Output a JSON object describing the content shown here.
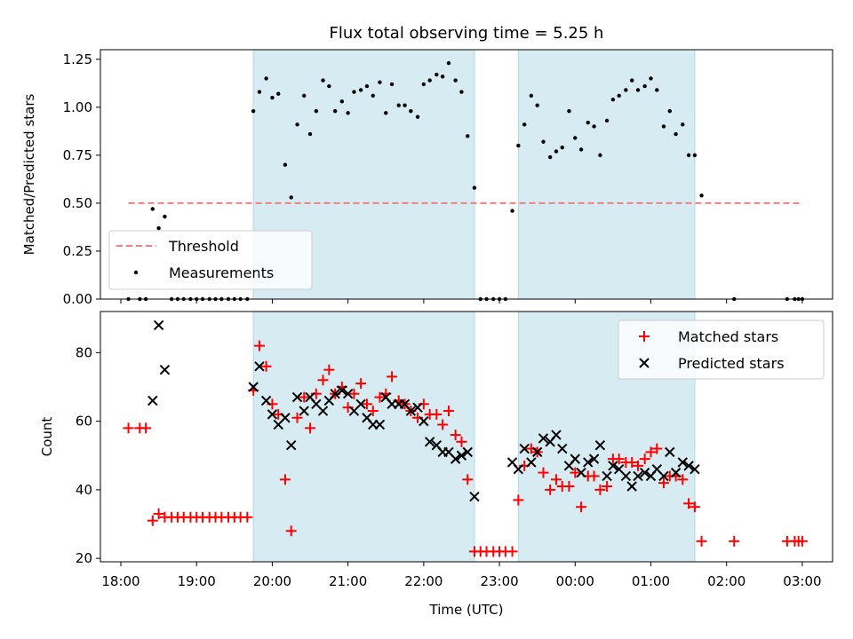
{
  "title": "Flux total observing time = 5.25 h",
  "chart_data": [
    {
      "type": "scatter",
      "ylabel": "Matched/Predicted stars",
      "xlabel": "",
      "xlim": [
        17.73,
        27.4
      ],
      "ylim": [
        0,
        1.3
      ],
      "yticks": [
        "0.00",
        "0.25",
        "0.50",
        "0.75",
        "1.00",
        "1.25"
      ],
      "grid": false,
      "legend_position": "lower-left",
      "shaded_intervals": [
        [
          19.75,
          22.67
        ],
        [
          23.25,
          25.58
        ]
      ],
      "threshold": {
        "name": "Threshold",
        "value": 0.5,
        "x_range": [
          18.1,
          27.0
        ],
        "color": "#f08080"
      },
      "series": [
        {
          "name": "Measurements",
          "color": "#000000",
          "x": [
            18.1,
            18.25,
            18.33,
            18.42,
            18.5,
            18.58,
            18.67,
            18.75,
            18.83,
            18.92,
            19.0,
            19.08,
            19.17,
            19.25,
            19.33,
            19.42,
            19.5,
            19.58,
            19.67,
            19.75,
            19.83,
            19.92,
            20.0,
            20.08,
            20.17,
            20.25,
            20.33,
            20.42,
            20.5,
            20.58,
            20.67,
            20.75,
            20.83,
            20.92,
            21.0,
            21.08,
            21.17,
            21.25,
            21.33,
            21.42,
            21.5,
            21.58,
            21.67,
            21.75,
            21.83,
            21.92,
            22.0,
            22.08,
            22.17,
            22.25,
            22.33,
            22.42,
            22.5,
            22.58,
            22.67,
            22.75,
            22.83,
            22.92,
            23.0,
            23.08,
            23.17,
            23.25,
            23.33,
            23.42,
            23.5,
            23.58,
            23.67,
            23.75,
            23.83,
            23.92,
            24.0,
            24.08,
            24.17,
            24.25,
            24.33,
            24.42,
            24.5,
            24.58,
            24.67,
            24.75,
            24.83,
            24.92,
            25.0,
            25.08,
            25.17,
            25.25,
            25.33,
            25.42,
            25.5,
            25.58,
            25.67,
            26.1,
            26.8,
            26.9,
            26.95,
            27.0
          ],
          "y": [
            0.0,
            0.0,
            0.0,
            0.47,
            0.37,
            0.43,
            0.0,
            0.0,
            0.0,
            0.0,
            0.0,
            0.0,
            0.0,
            0.0,
            0.0,
            0.0,
            0.0,
            0.0,
            0.0,
            0.98,
            1.08,
            1.15,
            1.05,
            1.07,
            0.7,
            0.53,
            0.91,
            1.06,
            0.86,
            0.98,
            1.14,
            1.11,
            0.98,
            1.03,
            0.97,
            1.08,
            1.09,
            1.11,
            1.06,
            1.13,
            0.97,
            1.12,
            1.01,
            1.01,
            0.98,
            0.95,
            1.12,
            1.14,
            1.17,
            1.16,
            1.23,
            1.14,
            1.08,
            0.85,
            0.58,
            0.0,
            0.0,
            0.0,
            0.0,
            0.0,
            0.46,
            0.8,
            0.91,
            1.06,
            1.01,
            0.82,
            0.74,
            0.77,
            0.79,
            0.98,
            0.84,
            0.78,
            0.92,
            0.9,
            0.75,
            0.93,
            1.04,
            1.06,
            1.09,
            1.14,
            1.09,
            1.11,
            1.15,
            1.09,
            0.9,
            0.98,
            0.86,
            0.91,
            0.75,
            0.75,
            0.54,
            0.0,
            0.0,
            0.0,
            0.0,
            0.0
          ]
        }
      ]
    },
    {
      "type": "scatter",
      "ylabel": "Count",
      "xlabel": "Time (UTC)",
      "xlim": [
        17.73,
        27.4
      ],
      "ylim": [
        19,
        92
      ],
      "yticks": [
        "20",
        "40",
        "60",
        "80"
      ],
      "xticks": [
        {
          "value": 18,
          "label": "18:00"
        },
        {
          "value": 19,
          "label": "19:00"
        },
        {
          "value": 20,
          "label": "20:00"
        },
        {
          "value": 21,
          "label": "21:00"
        },
        {
          "value": 22,
          "label": "22:00"
        },
        {
          "value": 23,
          "label": "23:00"
        },
        {
          "value": 24,
          "label": "00:00"
        },
        {
          "value": 25,
          "label": "01:00"
        },
        {
          "value": 26,
          "label": "02:00"
        },
        {
          "value": 27,
          "label": "03:00"
        }
      ],
      "grid": false,
      "legend_position": "top-right",
      "shaded_intervals": [
        [
          19.75,
          22.67
        ],
        [
          23.25,
          25.58
        ]
      ],
      "series": [
        {
          "name": "Matched stars",
          "marker": "plus",
          "color": "#ff0000",
          "x": [
            18.1,
            18.25,
            18.33,
            18.42,
            18.5,
            18.58,
            18.67,
            18.75,
            18.83,
            18.92,
            19.0,
            19.08,
            19.17,
            19.25,
            19.33,
            19.42,
            19.5,
            19.58,
            19.67,
            19.75,
            19.83,
            19.92,
            20.0,
            20.08,
            20.17,
            20.25,
            20.33,
            20.42,
            20.5,
            20.58,
            20.67,
            20.75,
            20.83,
            20.92,
            21.0,
            21.08,
            21.17,
            21.25,
            21.33,
            21.42,
            21.5,
            21.58,
            21.67,
            21.75,
            21.83,
            21.92,
            22.0,
            22.08,
            22.17,
            22.25,
            22.33,
            22.42,
            22.5,
            22.58,
            22.67,
            22.75,
            22.83,
            22.92,
            23.0,
            23.08,
            23.17,
            23.25,
            23.33,
            23.42,
            23.5,
            23.58,
            23.67,
            23.75,
            23.83,
            23.92,
            24.0,
            24.08,
            24.17,
            24.25,
            24.33,
            24.42,
            24.5,
            24.58,
            24.67,
            24.75,
            24.83,
            24.92,
            25.0,
            25.08,
            25.17,
            25.25,
            25.33,
            25.42,
            25.5,
            25.58,
            25.67,
            26.1,
            26.8,
            26.9,
            26.95,
            27.0
          ],
          "y": [
            58,
            58,
            58,
            31,
            33,
            32,
            32,
            32,
            32,
            32,
            32,
            32,
            32,
            32,
            32,
            32,
            32,
            32,
            32,
            69,
            82,
            76,
            65,
            62,
            43,
            28,
            61,
            67,
            58,
            68,
            72,
            75,
            68,
            70,
            64,
            68,
            71,
            65,
            63,
            67,
            68,
            73,
            66,
            65,
            63,
            61,
            65,
            62,
            62,
            59,
            63,
            56,
            54,
            43,
            22,
            22,
            22,
            22,
            22,
            22,
            22,
            37,
            47,
            52,
            51,
            45,
            40,
            43,
            41,
            41,
            45,
            35,
            44,
            44,
            40,
            41,
            49,
            49,
            48,
            48,
            47,
            49,
            51,
            52,
            42,
            44,
            44,
            43,
            36,
            35,
            25,
            25,
            25,
            25,
            25,
            25
          ]
        },
        {
          "name": "Predicted stars",
          "marker": "x",
          "color": "#000000",
          "x": [
            18.42,
            18.5,
            18.58,
            19.75,
            19.83,
            19.92,
            20.0,
            20.08,
            20.17,
            20.25,
            20.33,
            20.42,
            20.5,
            20.58,
            20.67,
            20.75,
            20.83,
            20.92,
            21.0,
            21.08,
            21.17,
            21.25,
            21.33,
            21.42,
            21.5,
            21.58,
            21.67,
            21.75,
            21.83,
            21.92,
            22.0,
            22.08,
            22.17,
            22.25,
            22.33,
            22.42,
            22.5,
            22.58,
            22.67,
            23.17,
            23.25,
            23.33,
            23.42,
            23.5,
            23.58,
            23.67,
            23.75,
            23.83,
            23.92,
            24.0,
            24.08,
            24.17,
            24.25,
            24.33,
            24.42,
            24.5,
            24.58,
            24.67,
            24.75,
            24.83,
            24.92,
            25.0,
            25.08,
            25.17,
            25.25,
            25.33,
            25.42,
            25.5,
            25.58
          ],
          "y": [
            66,
            88,
            75,
            70,
            76,
            66,
            62,
            59,
            61,
            53,
            67,
            63,
            67,
            65,
            63,
            66,
            68,
            69,
            68,
            63,
            65,
            61,
            59,
            59,
            67,
            65,
            65,
            65,
            63,
            64,
            60,
            54,
            53,
            51,
            51,
            49,
            50,
            51,
            38,
            48,
            46,
            52,
            48,
            51,
            55,
            54,
            56,
            52,
            47,
            49,
            45,
            48,
            49,
            53,
            44,
            47,
            46,
            44,
            41,
            44,
            45,
            44,
            46,
            44,
            51,
            45,
            48,
            47,
            46
          ]
        }
      ]
    }
  ]
}
